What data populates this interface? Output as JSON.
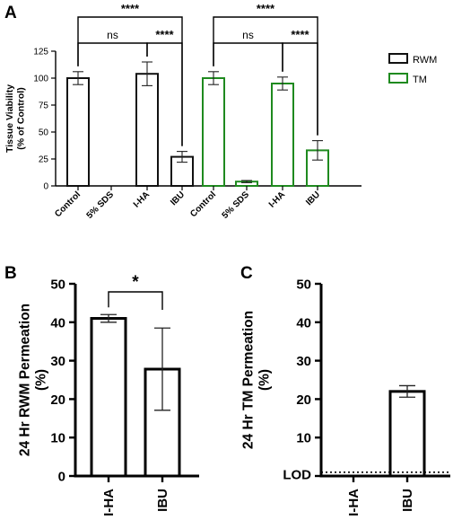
{
  "colors": {
    "rwm": "#111111",
    "tm": "#1f8a1f",
    "axis": "#000000"
  },
  "panel_labels": [
    "A",
    "B",
    "C"
  ],
  "chart_data": [
    {
      "type": "bar",
      "panel": "A",
      "ylabel": "Tissue Viability\n(% of Control)",
      "ylim": [
        0,
        125
      ],
      "yticks": [
        0,
        25,
        50,
        75,
        100,
        125
      ],
      "ytick_labels": [
        "0",
        "25",
        "50",
        "75",
        "100",
        "125"
      ],
      "legend": {
        "position": "right",
        "entries": [
          "RWM",
          "TM"
        ]
      },
      "groups": [
        {
          "series": "RWM",
          "categories": [
            "Control",
            "5% SDS",
            "I-HA",
            "IBU"
          ],
          "values": [
            100,
            0,
            104,
            27
          ],
          "errors": [
            6,
            0,
            11,
            5
          ]
        },
        {
          "series": "TM",
          "categories": [
            "Control",
            "5% SDS",
            "I-HA",
            "IBU"
          ],
          "values": [
            100,
            4,
            95,
            33
          ],
          "errors": [
            6,
            1,
            6,
            9
          ]
        }
      ],
      "significance": [
        {
          "group": 0,
          "from": 0,
          "to": 3,
          "label": "****"
        },
        {
          "group": 0,
          "from": 0,
          "to": 2,
          "label": "ns"
        },
        {
          "group": 0,
          "from": 2,
          "to": 3,
          "label": "****"
        },
        {
          "group": 1,
          "from": 0,
          "to": 3,
          "label": "****"
        },
        {
          "group": 1,
          "from": 0,
          "to": 2,
          "label": "ns"
        },
        {
          "group": 1,
          "from": 2,
          "to": 3,
          "label": "****"
        }
      ]
    },
    {
      "type": "bar",
      "panel": "B",
      "ylabel": "24 Hr RWM Permeation\n(%)",
      "ylim": [
        0,
        50
      ],
      "yticks": [
        0,
        10,
        20,
        30,
        40,
        50
      ],
      "ytick_labels": [
        "0",
        "10",
        "20",
        "30",
        "40",
        "50"
      ],
      "categories": [
        "I-HA",
        "IBU"
      ],
      "values": [
        41,
        27.8
      ],
      "errors": [
        1,
        10.7
      ],
      "significance": [
        {
          "from": 0,
          "to": 1,
          "label": "*"
        }
      ]
    },
    {
      "type": "bar",
      "panel": "C",
      "ylabel": "24 Hr TM Permeation\n(%)",
      "ylim": [
        0,
        50
      ],
      "yticks": [
        0,
        10,
        20,
        30,
        40,
        50
      ],
      "ytick_labels": [
        "LOD",
        "10",
        "20",
        "30",
        "40",
        "50"
      ],
      "categories": [
        "I-HA",
        "IBU"
      ],
      "values": [
        0,
        22
      ],
      "errors": [
        0,
        1.5
      ],
      "lod_line": 0.5
    }
  ]
}
